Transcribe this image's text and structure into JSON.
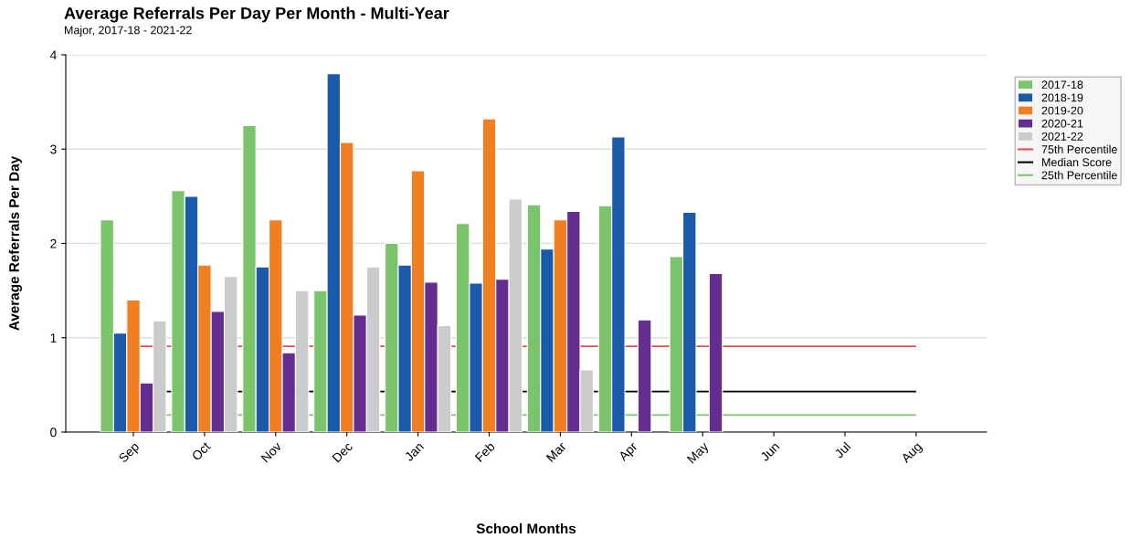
{
  "chart_data": {
    "type": "bar",
    "title": "Average Referrals Per Day Per Month - Multi-Year",
    "subtitle": "Major, 2017-18 - 2021-22",
    "xlabel": "School Months",
    "ylabel": "Average Referrals Per Day",
    "categories": [
      "Sep",
      "Oct",
      "Nov",
      "Dec",
      "Jan",
      "Feb",
      "Mar",
      "Apr",
      "May",
      "Jun",
      "Jul",
      "Aug"
    ],
    "series": [
      {
        "name": "2017-18",
        "color": "#7bc46b",
        "values": [
          2.25,
          2.56,
          3.25,
          1.5,
          2.0,
          2.21,
          2.41,
          2.4,
          1.86,
          null,
          null,
          null
        ]
      },
      {
        "name": "2018-19",
        "color": "#1a5aa8",
        "values": [
          1.05,
          2.5,
          1.75,
          3.8,
          1.77,
          1.58,
          1.94,
          3.13,
          2.33,
          null,
          null,
          null
        ]
      },
      {
        "name": "2019-20",
        "color": "#f07f22",
        "values": [
          1.4,
          1.77,
          2.25,
          3.07,
          2.77,
          3.32,
          2.25,
          null,
          null,
          null,
          null,
          null
        ]
      },
      {
        "name": "2020-21",
        "color": "#662d91",
        "values": [
          0.52,
          1.28,
          0.84,
          1.24,
          1.59,
          1.62,
          2.34,
          1.19,
          1.68,
          null,
          null,
          null
        ]
      },
      {
        "name": "2021-22",
        "color": "#cccccc",
        "values": [
          1.18,
          1.65,
          1.5,
          1.75,
          1.13,
          2.47,
          0.66,
          null,
          null,
          null,
          null,
          null
        ]
      }
    ],
    "ref_lines": [
      {
        "axis": "y",
        "value": 0.91,
        "label": "75th Percentile",
        "color": "#d9534f",
        "line_style": "solid"
      },
      {
        "axis": "y",
        "value": 0.43,
        "label": "Median Score",
        "color": "#000000",
        "line_style": "solid"
      },
      {
        "axis": "y",
        "value": 0.18,
        "label": "25th Percentile",
        "color": "#7bc46b",
        "line_style": "solid"
      }
    ],
    "ylim": [
      0,
      4
    ],
    "yticks": [
      0,
      1,
      2,
      3,
      4
    ],
    "grid": "y",
    "legend": "right"
  }
}
